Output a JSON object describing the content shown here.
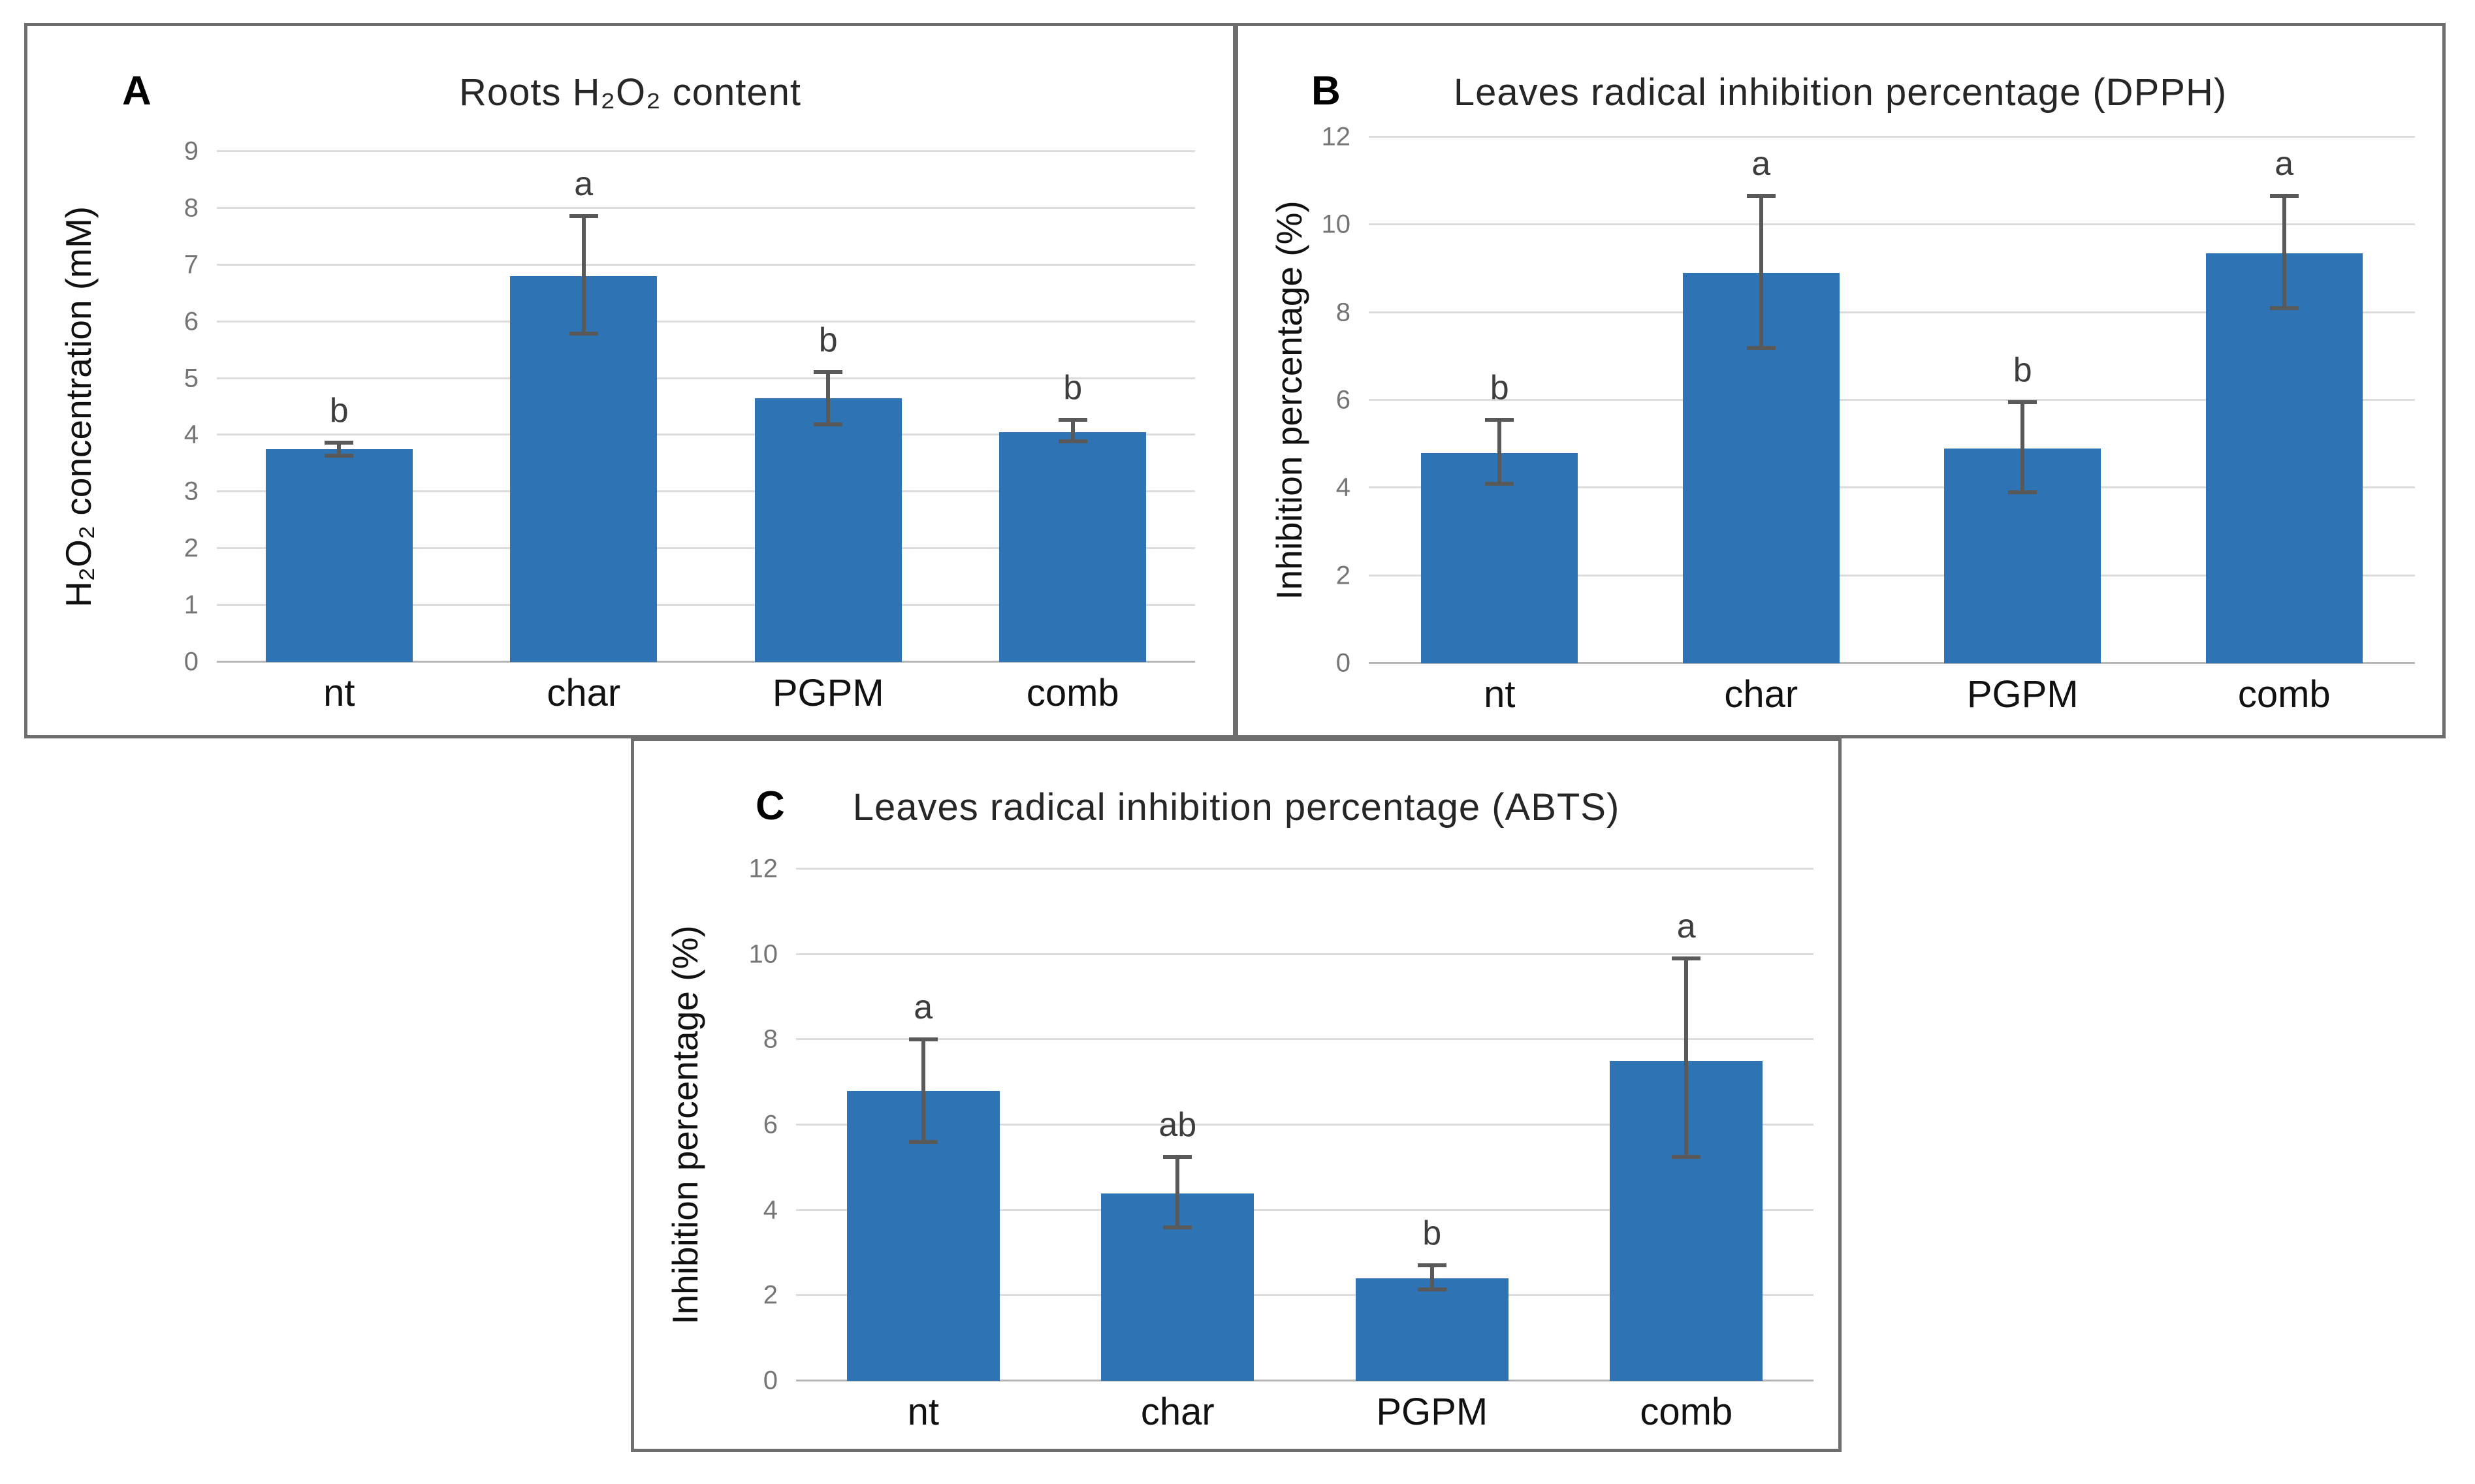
{
  "figure": {
    "background": "#ffffff",
    "bar_color": "#2E74B5",
    "error_bar_color": "#595959",
    "gridline_color": "#dcdcdc",
    "axis_line_color": "#b7b7b7",
    "panel_border_color": "#6e6e6e",
    "categories": [
      "nt",
      "char",
      "PGPM",
      "comb"
    ]
  },
  "chart_data": [
    {
      "panel_label": "A",
      "type": "bar",
      "title": "Roots H₂O₂ content",
      "ylabel": "H₂O₂ concentration  (mM)",
      "xlabel": "",
      "categories": [
        "nt",
        "char",
        "PGPM",
        "comb"
      ],
      "values": [
        3.75,
        6.8,
        4.65,
        4.05
      ],
      "error_low": [
        3.6,
        5.75,
        4.15,
        3.85
      ],
      "error_high": [
        3.9,
        7.9,
        5.15,
        4.3
      ],
      "sig_letters": [
        "b",
        "a",
        "b",
        "b"
      ],
      "ylim": [
        0,
        9
      ],
      "ytick_step": 1,
      "grid": true,
      "legend": "none"
    },
    {
      "panel_label": "B",
      "type": "bar",
      "title": "Leaves radical inhibition percentage (DPPH)",
      "ylabel": "Inhibition percentage (%)",
      "xlabel": "",
      "categories": [
        "nt",
        "char",
        "PGPM",
        "comb"
      ],
      "values": [
        4.8,
        8.9,
        4.9,
        9.35
      ],
      "error_low": [
        4.05,
        7.15,
        3.85,
        8.05
      ],
      "error_high": [
        5.6,
        10.7,
        6.0,
        10.7
      ],
      "sig_letters": [
        "b",
        "a",
        "b",
        "a"
      ],
      "ylim": [
        0,
        12
      ],
      "ytick_step": 2,
      "grid": true,
      "legend": "none"
    },
    {
      "panel_label": "C",
      "type": "bar",
      "title": "Leaves radical inhibition percentage (ABTS)",
      "ylabel": "Inhibition percentage (%)",
      "xlabel": "",
      "categories": [
        "nt",
        "char",
        "PGPM",
        "comb"
      ],
      "values": [
        6.8,
        4.4,
        2.4,
        7.5
      ],
      "error_low": [
        5.55,
        3.55,
        2.1,
        5.2
      ],
      "error_high": [
        8.05,
        5.3,
        2.75,
        9.95
      ],
      "sig_letters": [
        "a",
        "ab",
        "b",
        "a"
      ],
      "ylim": [
        0,
        12
      ],
      "ytick_step": 2,
      "grid": true,
      "legend": "none"
    }
  ]
}
